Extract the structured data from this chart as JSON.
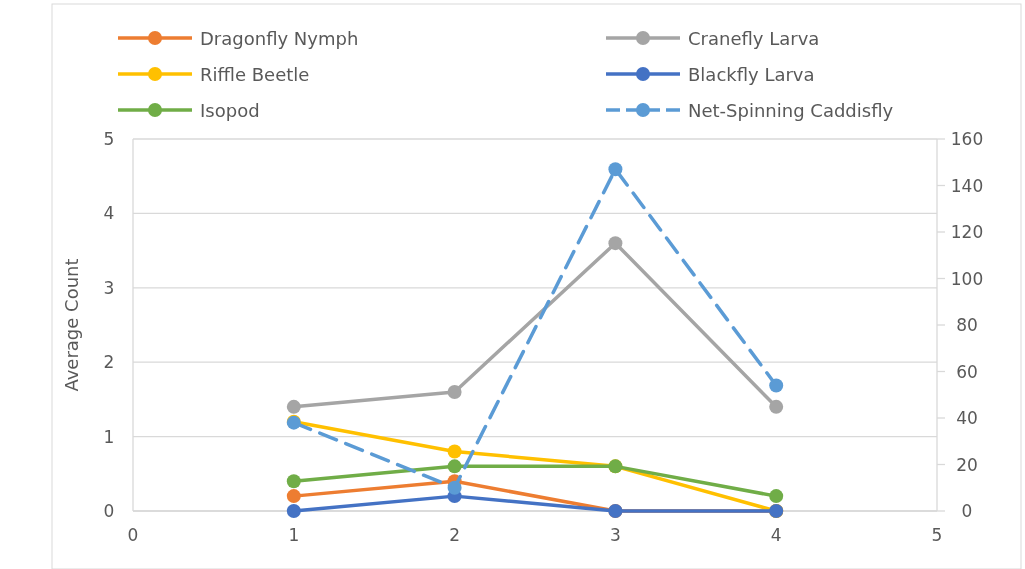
{
  "chart_data": {
    "type": "line",
    "ylabel": "Average Count",
    "x": [
      1,
      2,
      3,
      4
    ],
    "xlim": [
      0,
      5
    ],
    "xticks": [
      0,
      1,
      2,
      3,
      4,
      5
    ],
    "ylim": [
      0,
      5
    ],
    "yticks": [
      0,
      1,
      2,
      3,
      4,
      5
    ],
    "y2lim": [
      0,
      160
    ],
    "y2ticks": [
      0,
      20,
      40,
      60,
      80,
      100,
      120,
      140,
      160
    ],
    "grid": "y",
    "legend": "top",
    "marker": "circle",
    "line_style": "solid",
    "series": [
      {
        "name": "Dragonfly Nymph",
        "color": "#ed7d31",
        "values": [
          0.2,
          0.4,
          0,
          0
        ]
      },
      {
        "name": "Cranefly Larva",
        "color": "#a5a5a5",
        "values": [
          1.4,
          1.6,
          3.6,
          1.4
        ]
      },
      {
        "name": "Riffle Beetle",
        "color": "#ffc000",
        "values": [
          1.2,
          0.8,
          0.6,
          0
        ]
      },
      {
        "name": "Blackfly Larva",
        "color": "#4472c4",
        "values": [
          0,
          0.2,
          0,
          0
        ]
      },
      {
        "name": "Isopod",
        "color": "#70ad47",
        "values": [
          0.4,
          0.6,
          0.6,
          0.2
        ]
      },
      {
        "name": "Net-Spinning Caddisfly",
        "color": "#5b9bd5",
        "values": [
          38,
          10,
          147,
          54
        ],
        "axis": "y2",
        "line_style": "dashed"
      }
    ]
  }
}
